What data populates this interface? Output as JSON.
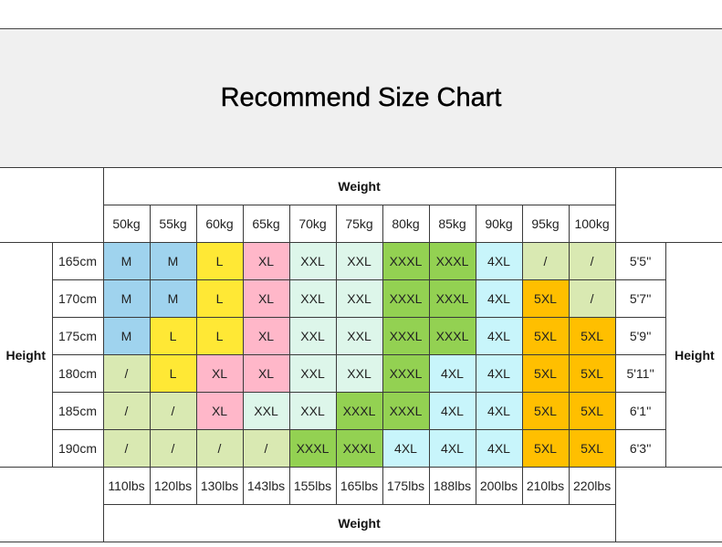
{
  "title": "Recommend Size Chart",
  "weight_label": "Weight",
  "height_label": "Height",
  "weights_kg": [
    "50kg",
    "55kg",
    "60kg",
    "65kg",
    "70kg",
    "75kg",
    "80kg",
    "85kg",
    "90kg",
    "95kg",
    "100kg"
  ],
  "weights_lbs": [
    "110lbs",
    "120lbs",
    "130lbs",
    "143lbs",
    "155lbs",
    "165lbs",
    "175lbs",
    "188lbs",
    "200lbs",
    "210lbs",
    "220lbs"
  ],
  "rows": [
    {
      "cm": "165cm",
      "ft": "5'5''",
      "sizes": [
        "M",
        "M",
        "L",
        "XL",
        "XXL",
        "XXL",
        "XXXL",
        "XXXL",
        "4XL",
        "/",
        "/"
      ]
    },
    {
      "cm": "170cm",
      "ft": "5'7''",
      "sizes": [
        "M",
        "M",
        "L",
        "XL",
        "XXL",
        "XXL",
        "XXXL",
        "XXXL",
        "4XL",
        "5XL",
        "/"
      ]
    },
    {
      "cm": "175cm",
      "ft": "5'9''",
      "sizes": [
        "M",
        "L",
        "L",
        "XL",
        "XXL",
        "XXL",
        "XXXL",
        "XXXL",
        "4XL",
        "5XL",
        "5XL"
      ]
    },
    {
      "cm": "180cm",
      "ft": "5'11''",
      "sizes": [
        "/",
        "L",
        "XL",
        "XL",
        "XXL",
        "XXL",
        "XXXL",
        "4XL",
        "4XL",
        "5XL",
        "5XL"
      ]
    },
    {
      "cm": "185cm",
      "ft": "6'1''",
      "sizes": [
        "/",
        "/",
        "XL",
        "XXL",
        "XXL",
        "XXXL",
        "XXXL",
        "4XL",
        "4XL",
        "5XL",
        "5XL"
      ]
    },
    {
      "cm": "190cm",
      "ft": "6'3''",
      "sizes": [
        "/",
        "/",
        "/",
        "/",
        "XXXL",
        "XXXL",
        "4XL",
        "4XL",
        "4XL",
        "5XL",
        "5XL"
      ]
    }
  ],
  "size_colors": {
    "M": "#9fd3ee",
    "L": "#ffe835",
    "XL": "#ffb7c9",
    "XXL": "#ddf6ea",
    "XXXL": "#93d152",
    "4XL": "#c8f5fb",
    "5XL": "#ffbf00",
    "/": "#d9e9b2"
  }
}
